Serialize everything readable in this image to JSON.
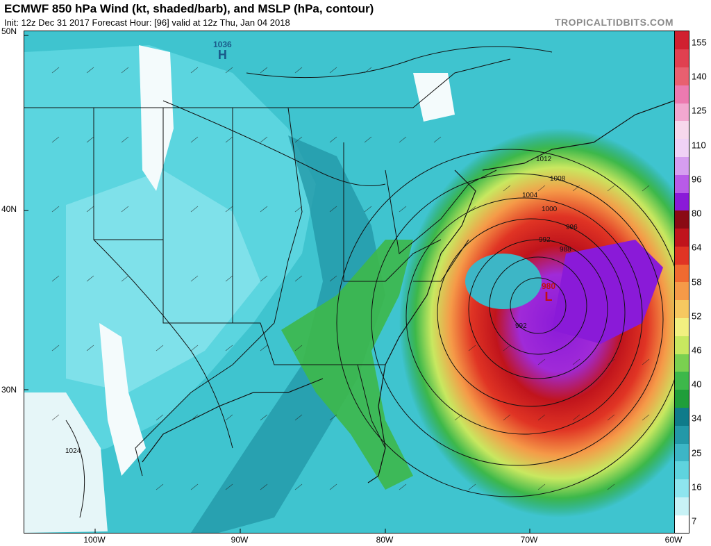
{
  "header": {
    "title": "ECMWF 850 hPa Wind (kt, shaded/barb), and MSLP (hPa, contour)",
    "subtitle": "Init: 12z Dec 31 2017   Forecast Hour: [96]   valid at 12z Thu, Jan 04 2018",
    "credit": "TROPICALTIDBITS.COM"
  },
  "axes": {
    "lat_labels": [
      "50N",
      "40N",
      "30N"
    ],
    "lon_labels": [
      "100W",
      "90W",
      "80W",
      "70W",
      "60W"
    ]
  },
  "colorbar": {
    "ticks": [
      "155",
      "140",
      "125",
      "110",
      "96",
      "80",
      "64",
      "58",
      "52",
      "46",
      "40",
      "34",
      "25",
      "16",
      "7"
    ],
    "colors": [
      "#ffffff",
      "#c8f2f6",
      "#8ee5ee",
      "#5fd3de",
      "#3db6c6",
      "#2398a8",
      "#0f7b8a",
      "#1f9e3a",
      "#3db84a",
      "#7ad050",
      "#c8e860",
      "#f2f080",
      "#f6c860",
      "#f59a48",
      "#f06a30",
      "#e03424",
      "#c0141c",
      "#8a0a14",
      "#8a1ad8",
      "#b85be8",
      "#d69ef0",
      "#f0d2f6",
      "#f7d8ec",
      "#f2a8d0",
      "#ec7ab0",
      "#e86070",
      "#e04050",
      "#d02030"
    ]
  },
  "pressure_centers": [
    {
      "type": "H",
      "value": "1036"
    },
    {
      "type": "L",
      "value": "980"
    }
  ],
  "isobar_labels": [
    "1012",
    "1008",
    "1004",
    "1000",
    "996",
    "992",
    "988",
    "992",
    "1024"
  ]
}
